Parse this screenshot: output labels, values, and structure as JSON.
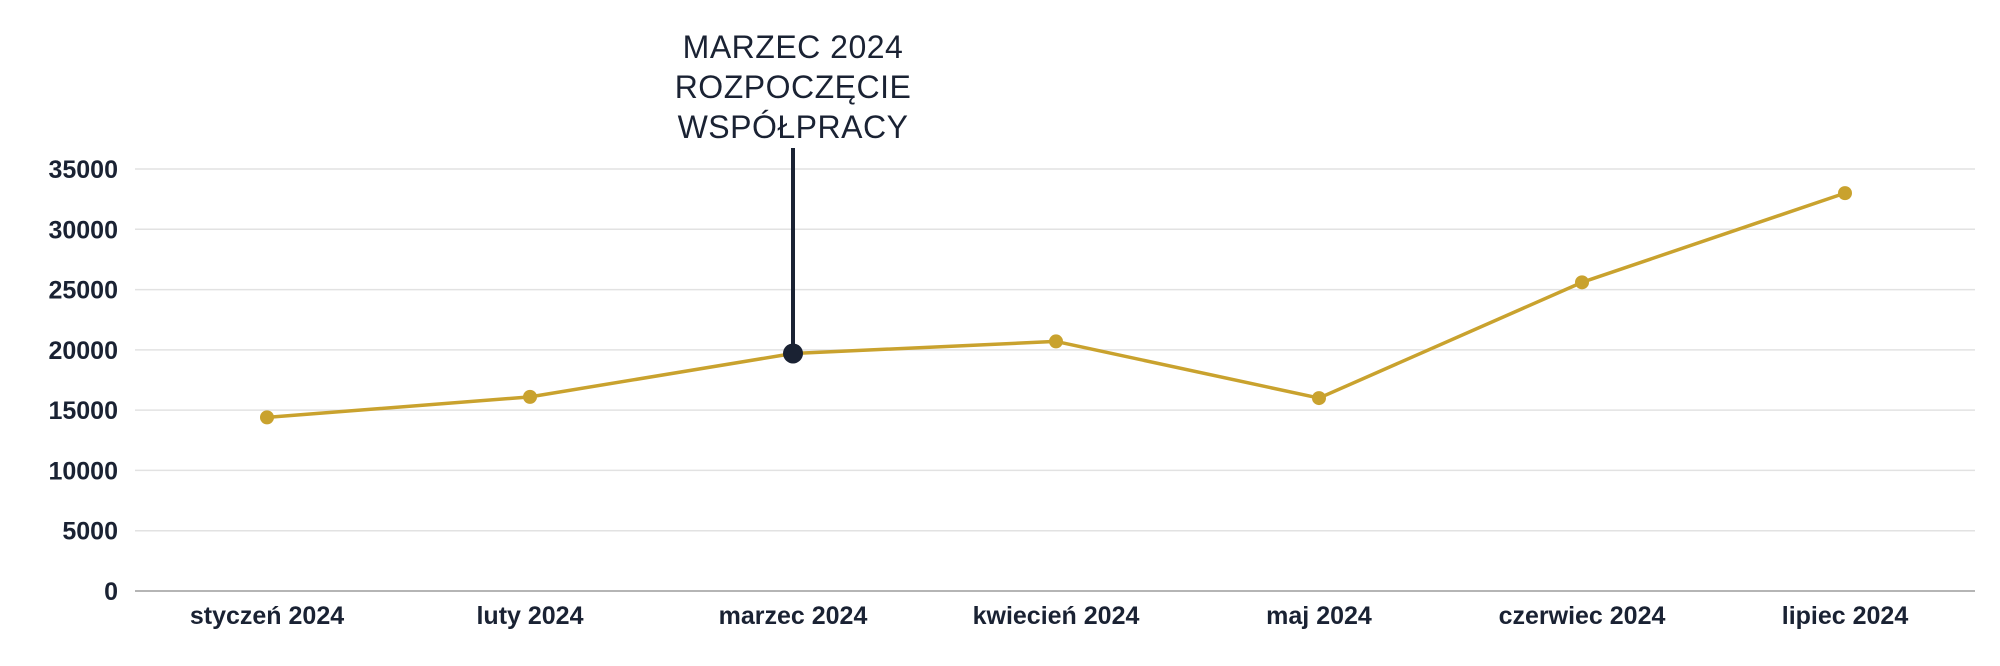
{
  "colors": {
    "series": "#c9a22e",
    "highlight": "#1a2233",
    "text": "#1a2233",
    "grid": "#e2e2e2",
    "axis": "#b5b5b5"
  },
  "chart_data": {
    "type": "line",
    "title": "",
    "xlabel": "",
    "ylabel": "",
    "categories": [
      "styczeń 2024",
      "luty 2024",
      "marzec 2024",
      "kwiecień 2024",
      "maj 2024",
      "czerwiec 2024",
      "lipiec 2024"
    ],
    "series": [
      {
        "values": [
          14400,
          16100,
          19700,
          20700,
          16000,
          25600,
          33000
        ]
      }
    ],
    "ylim": [
      0,
      35000
    ],
    "yticks": [
      "0",
      "5000",
      "10000",
      "15000",
      "20000",
      "25000",
      "30000",
      "35000"
    ],
    "grid": true,
    "legend": "none",
    "annotation": {
      "category": "marzec 2024",
      "lines": [
        "MARZEC 2024",
        "ROZPOCZĘCIE",
        "WSPÓŁPRACY"
      ]
    }
  }
}
